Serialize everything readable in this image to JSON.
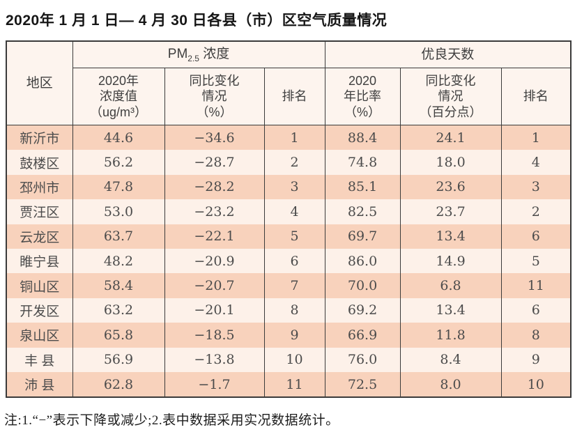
{
  "title": "2020年 1 月 1 日— 4 月 30 日各县（市）区空气质量情况",
  "table": {
    "header": {
      "region": "地区",
      "pm25_group": {
        "prefix": "PM",
        "sub": "2.5",
        "suffix": " 浓度"
      },
      "good_days_group": "优良天数",
      "sub": {
        "pm25_value": "2020年\n浓度值\n（ug/m³）",
        "pm25_change": "同比变化\n情况\n（%）",
        "pm25_rank": "排名",
        "good_rate": "2020\n年比率\n（%）",
        "good_change": "同比变化\n情况\n（百分点）",
        "good_rank": "排名"
      }
    },
    "rows": [
      [
        "新沂市",
        "44.6",
        "−34.6",
        "1",
        "88.4",
        "24.1",
        "1"
      ],
      [
        "鼓楼区",
        "56.2",
        "−28.7",
        "2",
        "74.8",
        "18.0",
        "4"
      ],
      [
        "邳州市",
        "47.8",
        "−28.2",
        "3",
        "85.1",
        "23.6",
        "3"
      ],
      [
        "贾汪区",
        "53.0",
        "−23.2",
        "4",
        "82.5",
        "23.7",
        "2"
      ],
      [
        "云龙区",
        "63.7",
        "−22.1",
        "5",
        "69.7",
        "13.4",
        "6"
      ],
      [
        "睢宁县",
        "48.2",
        "−20.9",
        "6",
        "86.0",
        "14.9",
        "5"
      ],
      [
        "铜山区",
        "58.4",
        "−20.7",
        "7",
        "70.0",
        "6.8",
        "11"
      ],
      [
        "开发区",
        "63.2",
        "−20.1",
        "8",
        "69.2",
        "13.4",
        "6"
      ],
      [
        "泉山区",
        "65.8",
        "−18.5",
        "9",
        "66.9",
        "11.8",
        "8"
      ],
      [
        "丰 县",
        "56.9",
        "−13.8",
        "10",
        "76.0",
        "8.4",
        "9"
      ],
      [
        "沛 县",
        "62.8",
        "−1.7",
        "11",
        "72.5",
        "8.0",
        "10"
      ]
    ]
  },
  "note": "注:1.“−”表示下降或减少;2.表中数据采用实况数据统计。",
  "colors": {
    "row_odd": "#f8d2bc",
    "row_even": "#fdf1e9",
    "header_bg": "#fdf4ee",
    "border": "#3a3a3a"
  }
}
